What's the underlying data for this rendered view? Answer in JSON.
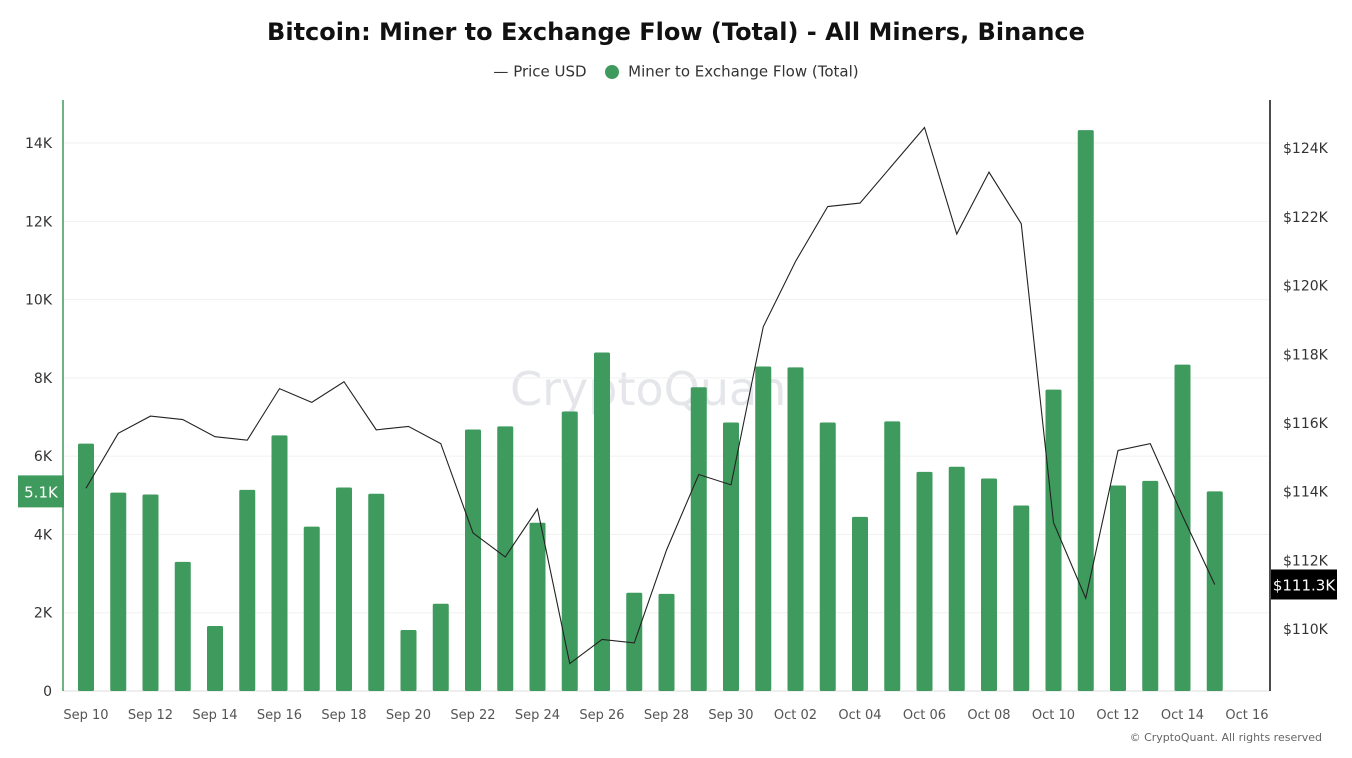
{
  "chart_data": {
    "type": "bar",
    "title": "Bitcoin: Miner to Exchange Flow (Total) - All Miners, Binance",
    "legend": [
      "Price USD",
      "Miner to Exchange Flow (Total)"
    ],
    "legend_position": "top",
    "categories": [
      "Sep 10",
      "Sep 11",
      "Sep 12",
      "Sep 13",
      "Sep 14",
      "Sep 15",
      "Sep 16",
      "Sep 17",
      "Sep 18",
      "Sep 19",
      "Sep 20",
      "Sep 21",
      "Sep 22",
      "Sep 23",
      "Sep 24",
      "Sep 25",
      "Sep 26",
      "Sep 27",
      "Sep 28",
      "Sep 29",
      "Sep 30",
      "Oct 01",
      "Oct 02",
      "Oct 03",
      "Oct 04",
      "Oct 05",
      "Oct 06",
      "Oct 07",
      "Oct 08",
      "Oct 09",
      "Oct 10",
      "Oct 11",
      "Oct 12",
      "Oct 13",
      "Oct 14",
      "Oct 15"
    ],
    "x_tick_labels": [
      "Sep 10",
      "Sep 12",
      "Sep 14",
      "Sep 16",
      "Sep 18",
      "Sep 20",
      "Sep 22",
      "Sep 24",
      "Sep 26",
      "Sep 28",
      "Sep 30",
      "Oct 02",
      "Oct 04",
      "Oct 06",
      "Oct 08",
      "Oct 10",
      "Oct 12",
      "Oct 14",
      "Oct 16"
    ],
    "series": [
      {
        "name": "Miner to Exchange Flow (Total)",
        "type": "bar",
        "axis": "left",
        "color": "#3f9a5d",
        "values": [
          6320,
          5070,
          5020,
          3300,
          1660,
          5140,
          6530,
          4200,
          5200,
          5040,
          1560,
          2230,
          6680,
          6760,
          4300,
          7140,
          8650,
          2510,
          2480,
          7760,
          6860,
          8290,
          8270,
          6860,
          4450,
          6890,
          5600,
          5730,
          5430,
          4740,
          7700,
          14330,
          5250,
          5370,
          8340,
          5100
        ]
      },
      {
        "name": "Price USD",
        "type": "line",
        "axis": "right",
        "color": "#222222",
        "values": [
          114.1,
          115.7,
          116.2,
          116.1,
          115.6,
          115.5,
          117.0,
          116.6,
          117.2,
          115.8,
          115.9,
          115.4,
          112.8,
          112.1,
          113.5,
          109.0,
          109.7,
          109.6,
          112.3,
          114.5,
          114.2,
          118.8,
          120.7,
          122.3,
          122.4,
          123.5,
          124.6,
          121.5,
          123.3,
          121.8,
          113.1,
          110.9,
          115.2,
          115.4,
          113.3,
          111.3
        ]
      }
    ],
    "left_axis": {
      "ticks": [
        "0",
        "2K",
        "4K",
        "6K",
        "8K",
        "10K",
        "12K",
        "14K"
      ],
      "tick_values": [
        0,
        2000,
        4000,
        6000,
        8000,
        10000,
        12000,
        14000
      ],
      "range": [
        0,
        15100
      ],
      "current_label": "5.1K"
    },
    "right_axis": {
      "ticks": [
        "$110K",
        "$112K",
        "$114K",
        "$116K",
        "$118K",
        "$120K",
        "$122K",
        "$124K"
      ],
      "tick_values": [
        110,
        112,
        114,
        116,
        118,
        120,
        122,
        124
      ],
      "range": [
        108.2,
        125.4
      ],
      "unit": "thousand USD",
      "current_label": "$111.3K"
    },
    "grid": "horizontal",
    "watermark": "CryptoQuant",
    "footer": "© CryptoQuant. All rights reserved"
  },
  "colors": {
    "bar": "#3f9a5d",
    "line": "#222222",
    "left_axis": "#3f9a5d",
    "price_badge": "#000000"
  }
}
